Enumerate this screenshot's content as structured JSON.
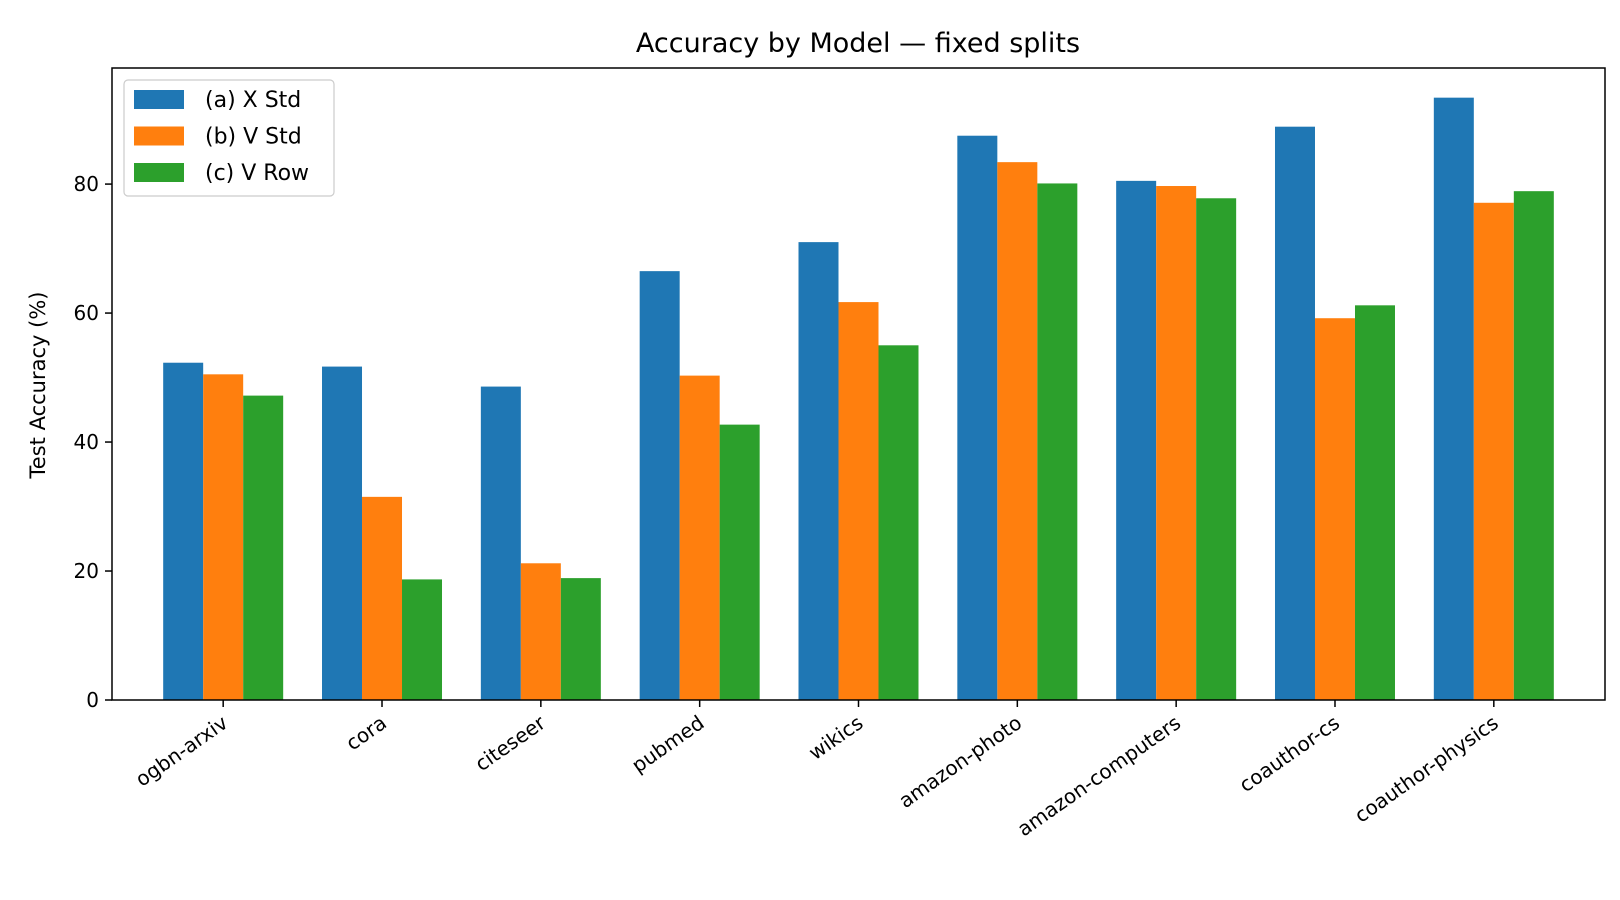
{
  "chart_data": {
    "type": "bar",
    "title": "Accuracy by Model — fixed splits",
    "xlabel": "",
    "ylabel": "Test Accuracy (%)",
    "ylim": [
      0,
      98
    ],
    "yticks": [
      0,
      20,
      40,
      60,
      80
    ],
    "grid": false,
    "legend_position": "top-left",
    "categories": [
      "ogbn-arxiv",
      "cora",
      "citeseer",
      "pubmed",
      "wikics",
      "amazon-photo",
      "amazon-computers",
      "coauthor-cs",
      "coauthor-physics"
    ],
    "series": [
      {
        "name": "(a) X Std",
        "color": "#1f77b4",
        "values": [
          52.3,
          51.7,
          48.6,
          66.5,
          71.0,
          87.5,
          80.5,
          88.9,
          93.4
        ]
      },
      {
        "name": "(b) V Std",
        "color": "#ff7f0e",
        "values": [
          50.5,
          31.5,
          21.2,
          50.3,
          61.7,
          83.4,
          79.7,
          59.2,
          77.1
        ]
      },
      {
        "name": "(c) V Row",
        "color": "#2ca02c",
        "values": [
          47.2,
          18.7,
          18.9,
          42.7,
          55.0,
          80.1,
          77.8,
          61.2,
          78.9
        ]
      }
    ]
  }
}
